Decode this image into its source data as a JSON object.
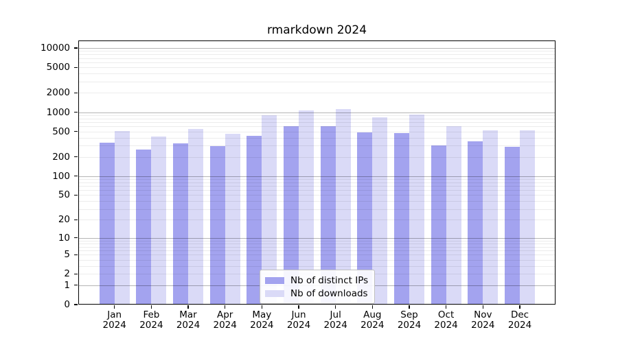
{
  "figure": {
    "title": "rmarkdown 2024"
  },
  "chart_data": {
    "type": "bar",
    "title": "rmarkdown 2024",
    "y_scale": "log1p",
    "ylim": [
      0,
      10000
    ],
    "grid": true,
    "legend_position": "lower center",
    "categories": [
      "Jan 2024",
      "Feb 2024",
      "Mar 2024",
      "Apr 2024",
      "May 2024",
      "Jun 2024",
      "Jul 2024",
      "Aug 2024",
      "Sep 2024",
      "Oct 2024",
      "Nov 2024",
      "Dec 2024"
    ],
    "x_tick_month": [
      "Jan",
      "Feb",
      "Mar",
      "Apr",
      "May",
      "Jun",
      "Jul",
      "Aug",
      "Sep",
      "Oct",
      "Nov",
      "Dec"
    ],
    "x_tick_year": "2024",
    "y_tick_values": [
      0,
      1,
      2,
      5,
      10,
      20,
      50,
      100,
      200,
      500,
      1000,
      2000,
      5000,
      10000
    ],
    "y_tick_labels": [
      "0",
      "1",
      "2",
      "5",
      "10",
      "20",
      "50",
      "100",
      "200",
      "500",
      "1000",
      "2000",
      "5000",
      "10000"
    ],
    "y_major_gridlines": [
      1,
      10,
      100,
      1000,
      10000
    ],
    "series": [
      {
        "name": "Nb of distinct IPs",
        "color": "#a3a3ef",
        "values": [
          335,
          260,
          325,
          295,
          430,
          605,
          610,
          480,
          475,
          300,
          350,
          290
        ]
      },
      {
        "name": "Nb of downloads",
        "color": "#dadaf7",
        "values": [
          510,
          420,
          545,
          465,
          890,
          1070,
          1120,
          835,
          920,
          600,
          520,
          520
        ]
      }
    ]
  },
  "colors": {
    "grid_major": "rgba(0,0,0,0.29)",
    "grid_minor": "rgba(0,0,0,0.075)",
    "axis": "#000000",
    "background": "#ffffff"
  }
}
